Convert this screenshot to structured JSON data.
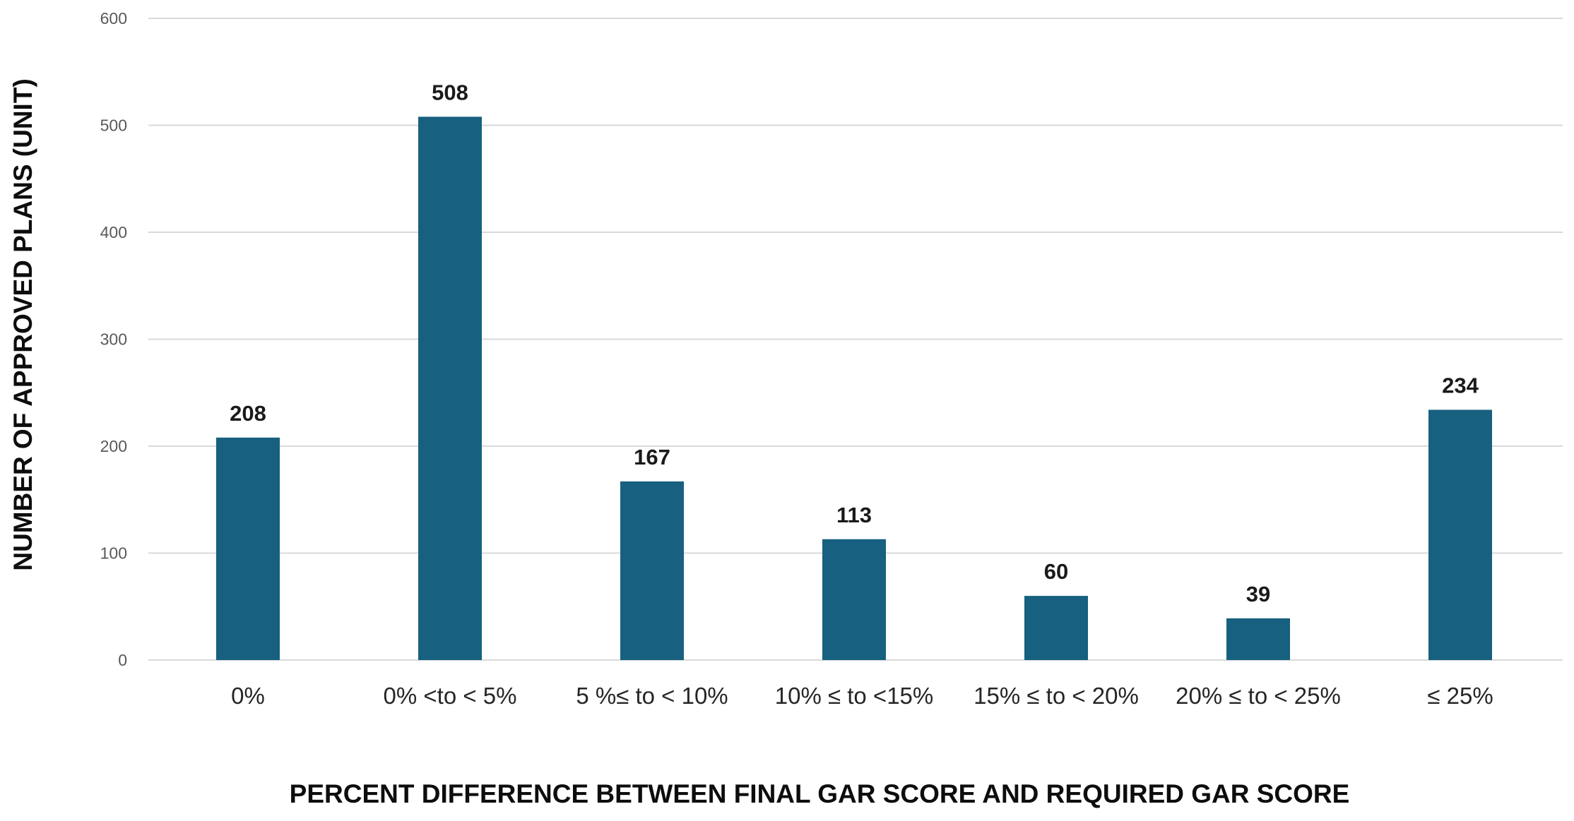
{
  "chart_data": {
    "type": "bar",
    "title": "",
    "xlabel": "PERCENT DIFFERENCE BETWEEN FINAL GAR SCORE AND REQUIRED GAR SCORE",
    "ylabel": "NUMBER OF APPROVED PLANS (UNIT)",
    "categories": [
      "0%",
      "0% <to < 5%",
      "5 %≤ to < 10%",
      "10% ≤ to <15%",
      "15% ≤ to < 20%",
      "20% ≤ to < 25%",
      "≤ 25%"
    ],
    "values": [
      208,
      508,
      167,
      113,
      60,
      39,
      234
    ],
    "data_labels": [
      "208",
      "508",
      "167",
      "113",
      "60",
      "39",
      "234"
    ],
    "ylim": [
      0,
      600
    ],
    "yticks": [
      0,
      100,
      200,
      300,
      400,
      500,
      600
    ],
    "ytick_labels": [
      "0",
      "100",
      "200",
      "300",
      "400",
      "500",
      "600"
    ],
    "grid": "horizontal",
    "legend": "none",
    "bar_color": "#17607f"
  }
}
